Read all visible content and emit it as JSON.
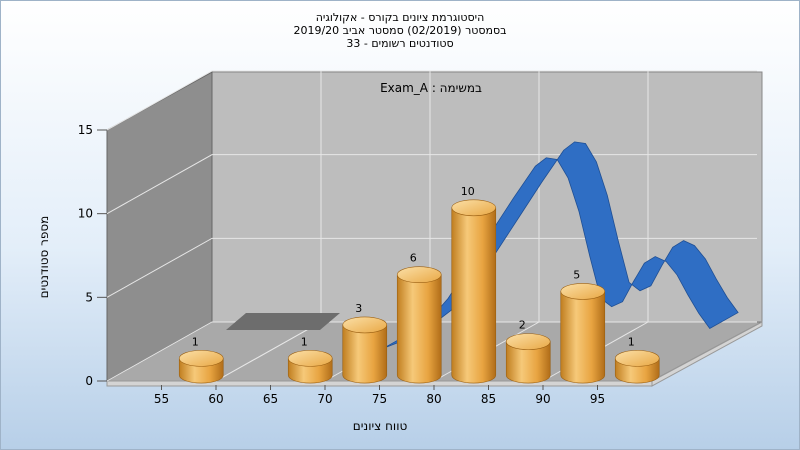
{
  "chart_data": {
    "type": "bar",
    "title_lines": [
      "היסטוגרמת ציונים בקורס - אקולוגיה",
      "בסמסטר  (02/2019)  סמסטר אביב 2019/20",
      "סטודנטים רשומים - 33"
    ],
    "annotation": "Exam_A : במשימה",
    "xlabel": "טווח ציונים",
    "ylabel": "מספר סטודנטים",
    "x_ticks": [
      55,
      60,
      65,
      70,
      75,
      80,
      85,
      90,
      95
    ],
    "y_ticks": [
      0,
      5,
      10,
      15
    ],
    "ylim": [
      0,
      15
    ],
    "bars": [
      {
        "center": 57.5,
        "value": 1
      },
      {
        "center": 67.5,
        "value": 1
      },
      {
        "center": 72.5,
        "value": 3
      },
      {
        "center": 77.5,
        "value": 6
      },
      {
        "center": 82.5,
        "value": 10
      },
      {
        "center": 87.5,
        "value": 2
      },
      {
        "center": 92.5,
        "value": 5
      },
      {
        "center": 97.5,
        "value": 1
      }
    ],
    "curve": {
      "x": [
        62,
        64,
        66,
        68,
        70,
        72,
        74,
        76,
        78,
        80,
        82,
        84,
        85,
        86,
        87,
        88,
        89,
        90,
        91,
        92,
        93,
        94,
        95,
        96,
        97,
        98,
        99,
        100
      ],
      "y": [
        0,
        0,
        0,
        0,
        0,
        0.5,
        1.5,
        3,
        5,
        7,
        9,
        10.9,
        11.4,
        11.3,
        10.2,
        8.2,
        5.5,
        3,
        2.5,
        2.8,
        4,
        5.1,
        5.5,
        5.2,
        4.4,
        3.2,
        2.1,
        1.2
      ],
      "color": "#2f6ec4"
    },
    "bar_color": "#e8a847",
    "grid": true
  }
}
